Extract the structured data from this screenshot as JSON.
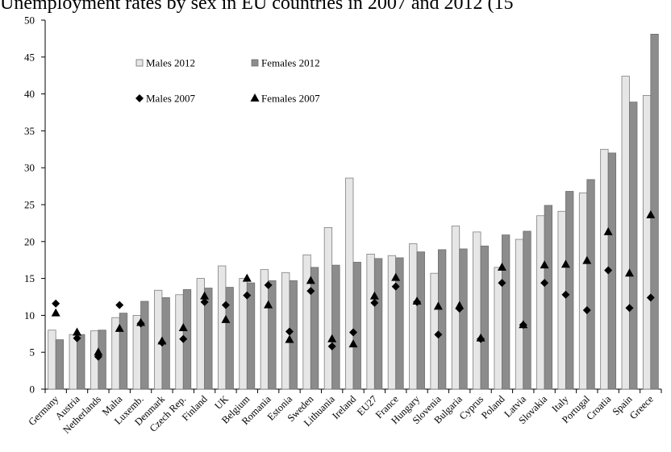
{
  "chart_data": {
    "type": "bar",
    "title": "Unemployment rates by sex in EU countries in 2007 and 2012 (15",
    "xlabel": "",
    "ylabel": "",
    "ylim": [
      0,
      50
    ],
    "yticks": [
      0,
      5,
      10,
      15,
      20,
      25,
      30,
      35,
      40,
      45,
      50
    ],
    "grid": false,
    "legend_position": "top-left",
    "categories": [
      "Germany",
      "Austria",
      "Netherlands",
      "Malta",
      "Luxemb.",
      "Denmark",
      "Czech Rep.",
      "Finland",
      "UK",
      "Belgium",
      "Romania",
      "Estonia",
      "Sweden",
      "Lithuania",
      "Ireland",
      "EU27",
      "France",
      "Hungary",
      "Slovenia",
      "Bulgaria",
      "Cyprus",
      "Poland",
      "Latvia",
      "Slovakia",
      "Italy",
      "Portugal",
      "Croatia",
      "Spain",
      "Greece"
    ],
    "series": [
      {
        "name": "Males 2012",
        "kind": "bar",
        "color": "#e6e6e6",
        "values": [
          8.0,
          7.4,
          7.9,
          9.7,
          10.0,
          13.4,
          12.8,
          15.0,
          16.7,
          15.0,
          16.2,
          15.8,
          18.2,
          21.9,
          28.6,
          18.3,
          18.1,
          19.7,
          15.7,
          22.1,
          21.3,
          16.5,
          20.3,
          23.5,
          24.1,
          26.6,
          32.5,
          42.4,
          39.8
        ]
      },
      {
        "name": "Females 2012",
        "kind": "bar",
        "color": "#8c8c8c",
        "values": [
          6.7,
          7.4,
          8.0,
          10.3,
          11.9,
          12.4,
          13.5,
          13.7,
          13.8,
          14.4,
          14.7,
          14.7,
          16.5,
          16.8,
          17.2,
          17.7,
          17.8,
          18.6,
          18.9,
          19.0,
          19.4,
          20.9,
          21.4,
          24.9,
          26.8,
          28.4,
          32.0,
          38.9,
          48.1
        ]
      },
      {
        "name": "Males 2007",
        "kind": "marker",
        "marker": "diamond",
        "color": "#000000",
        "values": [
          11.6,
          6.9,
          4.4,
          11.4,
          8.9,
          6.3,
          6.8,
          11.8,
          11.4,
          12.7,
          14.1,
          7.8,
          13.3,
          5.8,
          7.7,
          11.7,
          13.9,
          11.8,
          7.4,
          10.9,
          6.8,
          14.4,
          8.7,
          14.4,
          12.8,
          10.7,
          16.1,
          11.0,
          12.4
        ]
      },
      {
        "name": "Females 2007",
        "kind": "marker",
        "marker": "triangle",
        "color": "#000000",
        "values": [
          10.3,
          7.7,
          5.0,
          8.2,
          9.0,
          6.5,
          8.3,
          12.6,
          9.4,
          15.0,
          11.4,
          6.7,
          14.7,
          6.8,
          6.1,
          12.6,
          15.1,
          11.9,
          11.2,
          11.3,
          6.9,
          16.5,
          8.7,
          16.8,
          16.9,
          17.4,
          21.3,
          15.7,
          23.6
        ]
      }
    ]
  }
}
